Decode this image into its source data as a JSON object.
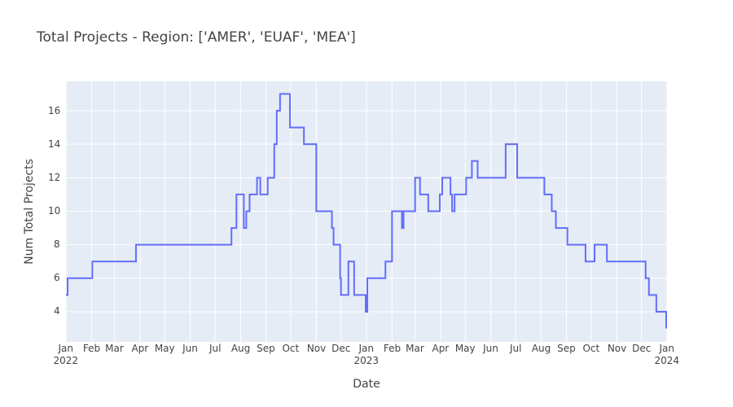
{
  "chart_data": {
    "type": "line",
    "line_shape": "hv",
    "title": "Total Projects - Region: ['AMER', 'EUAF', 'MEA']",
    "x_label": "Date",
    "y_label": "Num Total Projects",
    "color": "#636efa",
    "grid": true,
    "x": [
      "2022-01-01",
      "2022-01-03",
      "2022-02-02",
      "2022-03-27",
      "2022-07-21",
      "2022-07-27",
      "2022-08-05",
      "2022-08-08",
      "2022-08-12",
      "2022-08-21",
      "2022-08-25",
      "2022-09-03",
      "2022-09-11",
      "2022-09-14",
      "2022-09-18",
      "2022-09-30",
      "2022-10-17",
      "2022-11-01",
      "2022-11-20",
      "2022-11-22",
      "2022-11-30",
      "2022-12-01",
      "2022-12-10",
      "2022-12-17",
      "2022-12-31",
      "2023-01-02",
      "2023-01-24",
      "2023-02-01",
      "2023-02-13",
      "2023-02-15",
      "2023-03-01",
      "2023-03-07",
      "2023-03-17",
      "2023-03-31",
      "2023-04-03",
      "2023-04-13",
      "2023-04-15",
      "2023-04-18",
      "2023-05-02",
      "2023-05-09",
      "2023-05-16",
      "2023-06-19",
      "2023-07-03",
      "2023-08-05",
      "2023-08-14",
      "2023-08-19",
      "2023-09-02",
      "2023-09-24",
      "2023-10-05",
      "2023-10-20",
      "2023-12-06",
      "2023-12-10",
      "2023-12-19",
      "2023-12-31"
    ],
    "values": [
      5,
      6,
      7,
      8,
      9,
      11,
      9,
      10,
      11,
      12,
      11,
      12,
      14,
      16,
      17,
      15,
      14,
      10,
      9,
      8,
      6,
      5,
      7,
      5,
      4,
      6,
      7,
      10,
      9,
      10,
      12,
      11,
      10,
      11,
      12,
      11,
      10,
      11,
      12,
      13,
      12,
      14,
      12,
      11,
      10,
      9,
      8,
      7,
      8,
      7,
      6,
      5,
      4,
      3
    ],
    "xlim": [
      "2022-01-01",
      "2024-01-01"
    ],
    "xticks": [
      {
        "value": "2022-01-01",
        "label": "Jan\n2022"
      },
      {
        "value": "2022-02-01",
        "label": "Feb"
      },
      {
        "value": "2022-03-01",
        "label": "Mar"
      },
      {
        "value": "2022-04-01",
        "label": "Apr"
      },
      {
        "value": "2022-05-01",
        "label": "May"
      },
      {
        "value": "2022-06-01",
        "label": "Jun"
      },
      {
        "value": "2022-07-01",
        "label": "Jul"
      },
      {
        "value": "2022-08-01",
        "label": "Aug"
      },
      {
        "value": "2022-09-01",
        "label": "Sep"
      },
      {
        "value": "2022-10-01",
        "label": "Oct"
      },
      {
        "value": "2022-11-01",
        "label": "Nov"
      },
      {
        "value": "2022-12-01",
        "label": "Dec"
      },
      {
        "value": "2023-01-01",
        "label": "Jan\n2023"
      },
      {
        "value": "2023-02-01",
        "label": "Feb"
      },
      {
        "value": "2023-03-01",
        "label": "Mar"
      },
      {
        "value": "2023-04-01",
        "label": "Apr"
      },
      {
        "value": "2023-05-01",
        "label": "May"
      },
      {
        "value": "2023-06-01",
        "label": "Jun"
      },
      {
        "value": "2023-07-01",
        "label": "Jul"
      },
      {
        "value": "2023-08-01",
        "label": "Aug"
      },
      {
        "value": "2023-09-01",
        "label": "Sep"
      },
      {
        "value": "2023-10-01",
        "label": "Oct"
      },
      {
        "value": "2023-11-01",
        "label": "Nov"
      },
      {
        "value": "2023-12-01",
        "label": "Dec"
      },
      {
        "value": "2024-01-01",
        "label": "Jan\n2024"
      }
    ],
    "ylim": [
      2.2,
      17.75
    ],
    "yticks": [
      4,
      6,
      8,
      10,
      12,
      14,
      16
    ]
  }
}
